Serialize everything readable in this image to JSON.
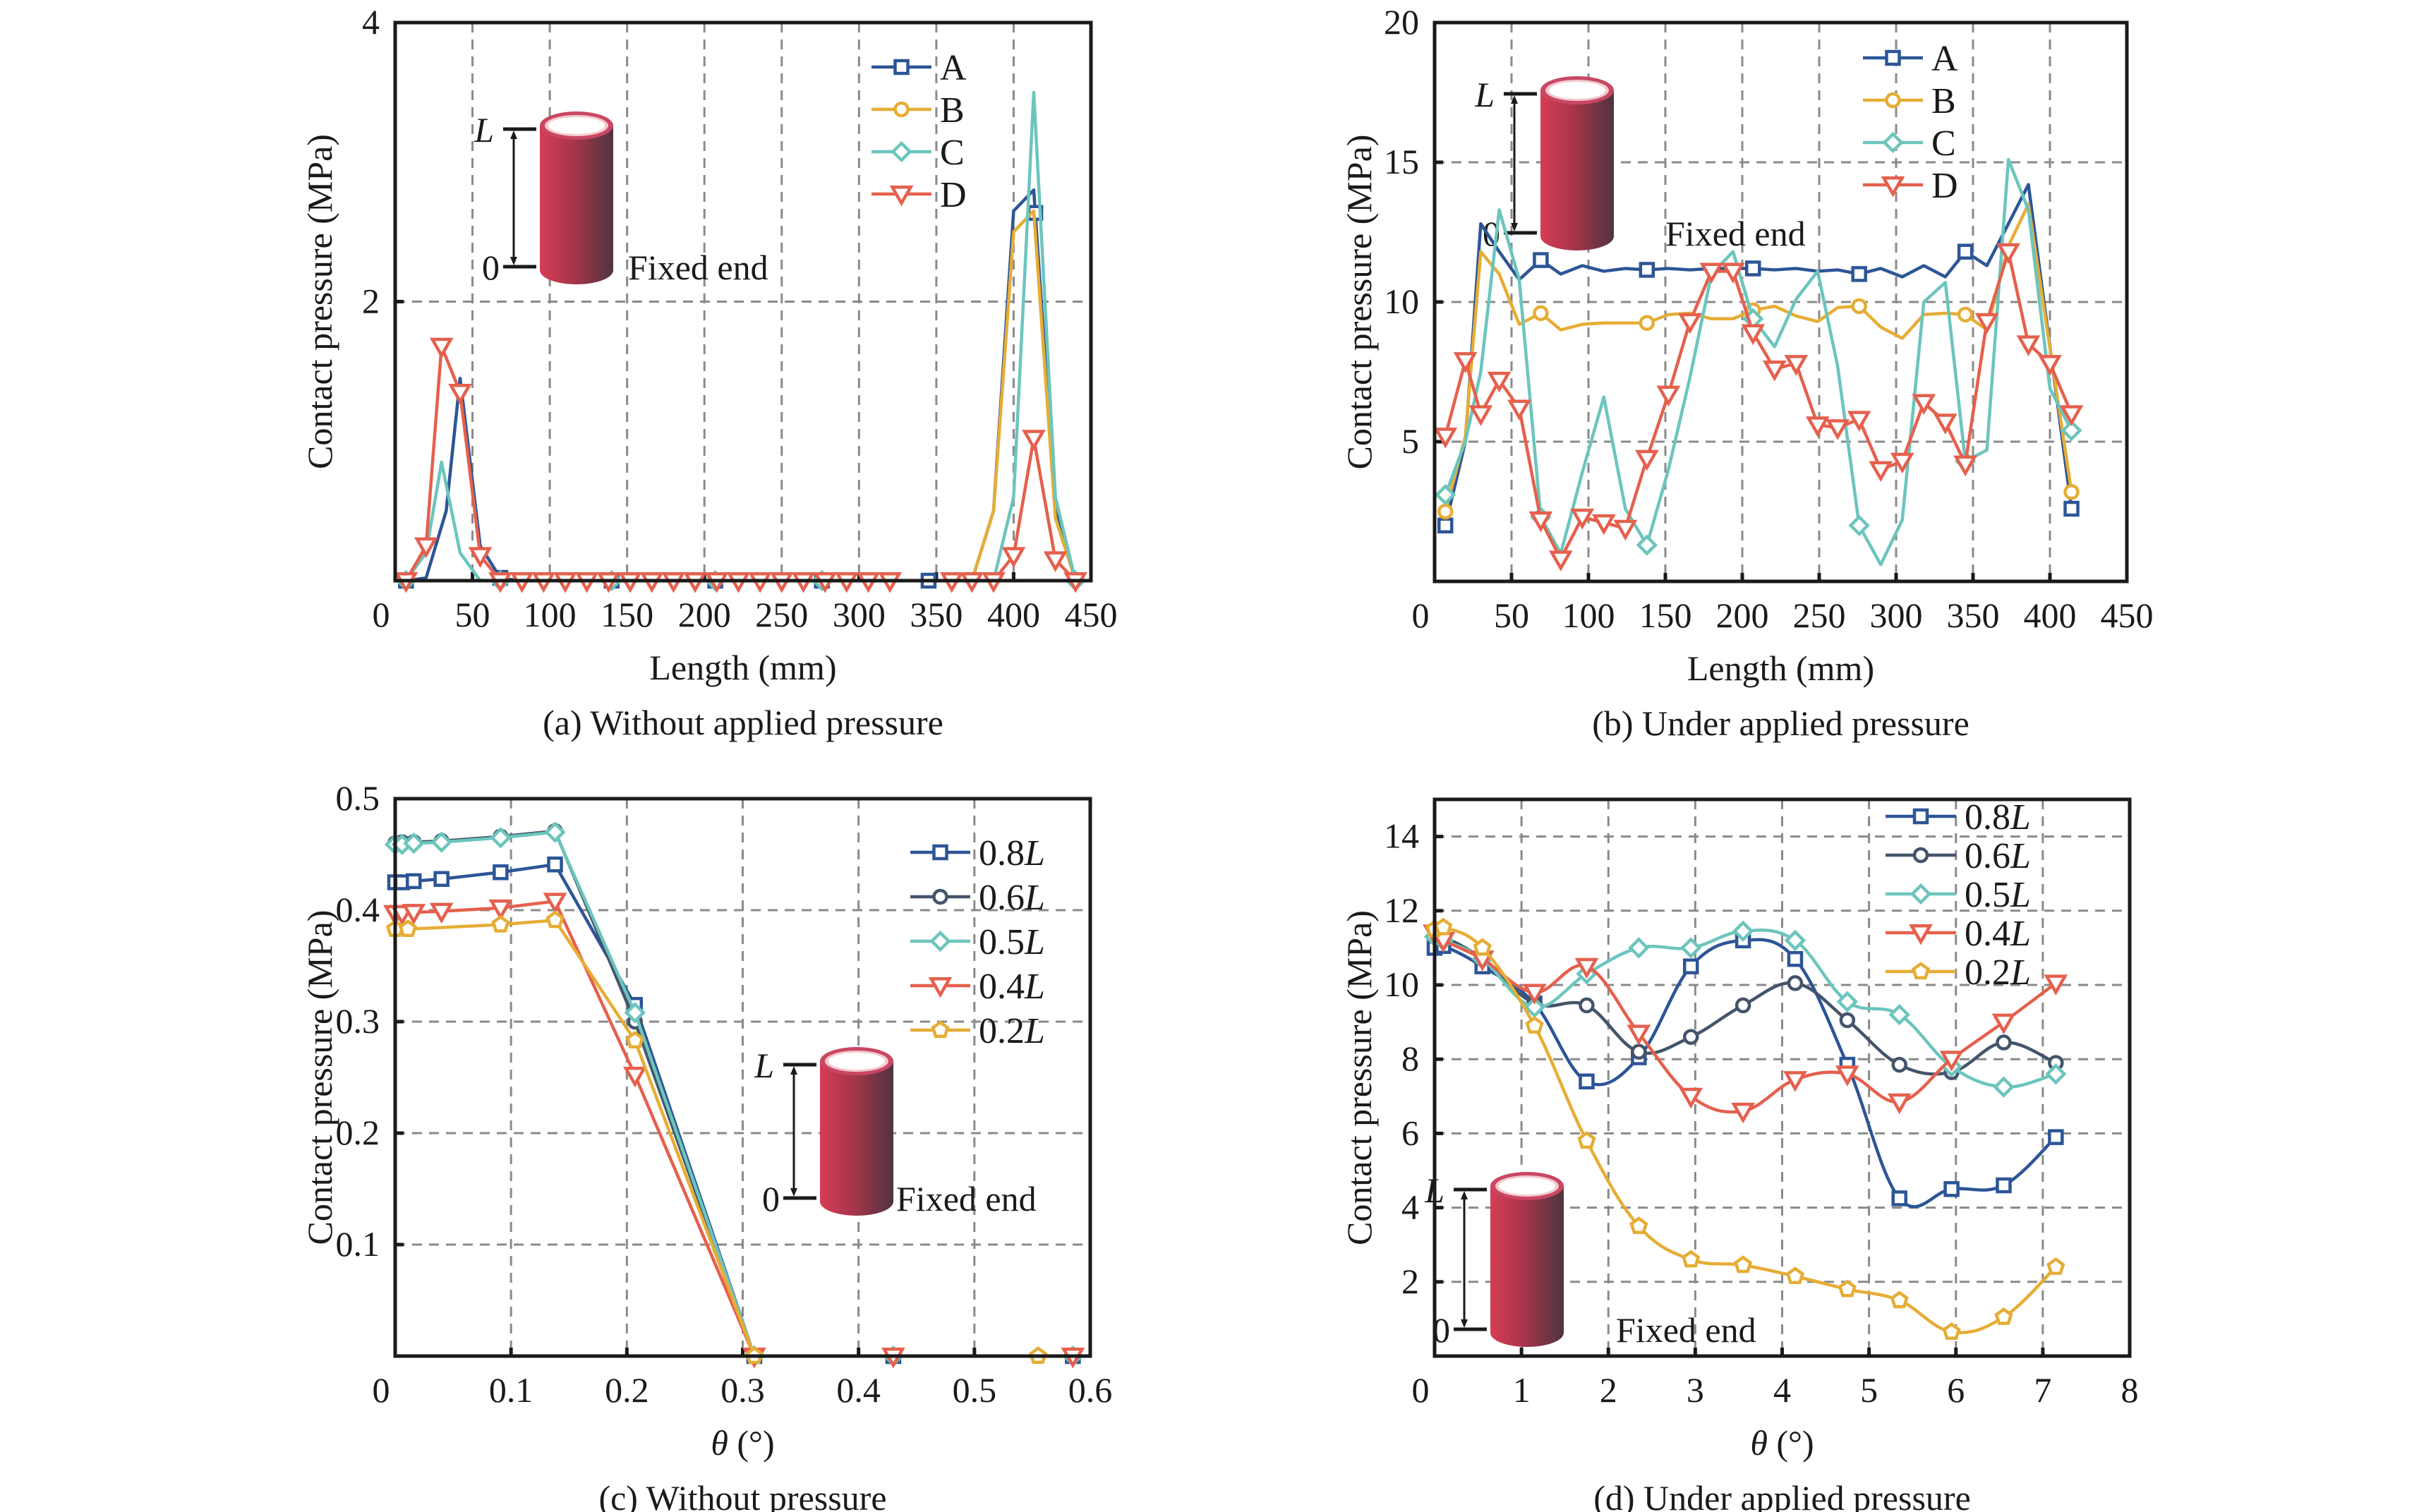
{
  "colors": {
    "A": "#2d5597",
    "B": "#e6ad35",
    "C": "#6cc5bd",
    "D": "#e5604d",
    "0.8L": "#2d5597",
    "0.6L": "#44546a",
    "0.5L": "#6cc5bd",
    "0.4L": "#e5604d",
    "0.2L": "#e6ad35"
  },
  "inset": {
    "top_label": "L",
    "bottom_label": "0",
    "fixed_label": "Fixed end"
  },
  "chart_data": [
    {
      "id": "a",
      "type": "line",
      "caption": "(a) Without applied pressure",
      "xlabel": "Length (mm)",
      "ylabel": "Contact pressure (MPa)",
      "xlim": [
        0,
        450
      ],
      "ylim": [
        0,
        4
      ],
      "xticks": [
        0,
        50,
        100,
        150,
        200,
        250,
        300,
        350,
        400,
        450
      ],
      "yticks": [
        2,
        4
      ],
      "ytick_labels_shown": [
        "2",
        "4"
      ],
      "grid": true,
      "smooth": false,
      "legend": "top-right",
      "series": [
        {
          "name": "A",
          "marker": "square",
          "x": [
            7,
            20,
            33,
            42,
            55,
            68,
            80,
            95,
            110,
            125,
            140,
            155,
            170,
            185,
            200,
            215,
            230,
            245,
            260,
            275,
            290,
            305,
            320,
            360,
            373,
            387,
            400,
            413,
            427,
            440
          ],
          "y": [
            0,
            0.02,
            0.5,
            1.45,
            0.25,
            0.02,
            0,
            0,
            0,
            0,
            0,
            0,
            0,
            0,
            0,
            0,
            0,
            0,
            0,
            0,
            0,
            0,
            0,
            0,
            0,
            0.5,
            2.65,
            2.8,
            0.5,
            0
          ],
          "markers_at": [
            7,
            68,
            140,
            207,
            276,
            345,
            414
          ]
        },
        {
          "name": "B",
          "marker": "circle",
          "x": [
            7,
            20,
            33,
            42,
            55,
            68,
            80,
            95,
            110,
            125,
            140,
            155,
            170,
            185,
            200,
            215,
            230,
            245,
            260,
            275,
            290,
            305,
            320,
            360,
            373,
            387,
            400,
            413,
            427,
            440
          ],
          "y": [
            0,
            0,
            0,
            0,
            0,
            0,
            0,
            0,
            0,
            0,
            0,
            0,
            0,
            0,
            0,
            0,
            0,
            0,
            0,
            0,
            0,
            0,
            0,
            0,
            0,
            0.5,
            2.5,
            2.65,
            0.45,
            0
          ],
          "markers_at": []
        },
        {
          "name": "C",
          "marker": "diamond",
          "x": [
            7,
            20,
            30,
            42,
            55,
            68,
            80,
            95,
            110,
            125,
            140,
            155,
            170,
            185,
            200,
            215,
            230,
            245,
            260,
            275,
            290,
            305,
            320,
            360,
            373,
            387,
            400,
            413,
            427,
            440
          ],
          "y": [
            0,
            0.2,
            0.85,
            0.2,
            0,
            0,
            0,
            0,
            0,
            0,
            0,
            0,
            0,
            0,
            0,
            0,
            0,
            0,
            0,
            0,
            0,
            0,
            0,
            0,
            0,
            0,
            0.6,
            3.5,
            0.6,
            0
          ],
          "markers_at": [
            7,
            68,
            140,
            207,
            276,
            440
          ]
        },
        {
          "name": "D",
          "marker": "triangle-down",
          "x": [
            7,
            20,
            30,
            42,
            55,
            68,
            82,
            96,
            110,
            124,
            138,
            152,
            166,
            180,
            194,
            208,
            222,
            236,
            250,
            264,
            278,
            292,
            306,
            320,
            360,
            373,
            387,
            400,
            413,
            427,
            440
          ],
          "y": [
            0,
            0.25,
            1.68,
            1.35,
            0.18,
            0,
            0,
            0,
            0,
            0,
            0,
            0,
            0,
            0,
            0,
            0,
            0,
            0,
            0,
            0,
            0,
            0,
            0,
            0,
            0,
            0,
            0,
            0.18,
            1.02,
            0.15,
            0
          ]
        }
      ]
    },
    {
      "id": "b",
      "type": "line",
      "caption": "(b) Under applied pressure",
      "xlabel": "Length (mm)",
      "ylabel": "Contact pressure (MPa)",
      "xlim": [
        0,
        450
      ],
      "ylim": [
        0,
        20
      ],
      "xticks": [
        0,
        50,
        100,
        150,
        200,
        250,
        300,
        350,
        400,
        450
      ],
      "yticks": [
        5,
        10,
        15,
        20
      ],
      "grid": true,
      "smooth": false,
      "legend": "top-right",
      "series": [
        {
          "name": "A",
          "marker": "square",
          "x": [
            7,
            20,
            30,
            42,
            55,
            69,
            82,
            96,
            110,
            124,
            138,
            152,
            166,
            180,
            194,
            207,
            221,
            235,
            249,
            262,
            276,
            290,
            304,
            318,
            332,
            345,
            359,
            373,
            386,
            414
          ],
          "y": [
            2.0,
            5.0,
            12.8,
            11.8,
            10.8,
            11.5,
            11.0,
            11.3,
            11.1,
            11.2,
            11.15,
            11.2,
            11.15,
            11.2,
            11.2,
            11.2,
            11.15,
            11.2,
            11.1,
            11.15,
            11.0,
            11.2,
            10.9,
            11.3,
            10.9,
            11.8,
            11.3,
            12.8,
            14.2,
            2.6
          ],
          "markers_at": [
            7,
            69,
            138,
            207,
            276,
            345,
            414
          ]
        },
        {
          "name": "B",
          "marker": "circle",
          "x": [
            7,
            20,
            30,
            42,
            55,
            69,
            82,
            96,
            110,
            124,
            138,
            152,
            166,
            180,
            194,
            207,
            221,
            235,
            249,
            262,
            276,
            290,
            304,
            318,
            332,
            345,
            359,
            373,
            386,
            414
          ],
          "y": [
            2.5,
            5.2,
            11.8,
            11.0,
            9.2,
            9.6,
            9.0,
            9.2,
            9.25,
            9.25,
            9.25,
            9.55,
            9.6,
            9.4,
            9.4,
            9.7,
            9.85,
            9.5,
            9.3,
            9.8,
            9.85,
            9.1,
            8.7,
            9.55,
            9.6,
            9.55,
            9.0,
            12.0,
            13.5,
            3.2
          ],
          "markers_at": [
            7,
            69,
            138,
            207,
            276,
            345,
            414
          ]
        },
        {
          "name": "C",
          "marker": "diamond",
          "x": [
            7,
            20,
            30,
            42,
            55,
            69,
            82,
            96,
            110,
            124,
            138,
            152,
            166,
            180,
            194,
            207,
            221,
            235,
            249,
            262,
            276,
            290,
            304,
            318,
            332,
            345,
            359,
            373,
            386,
            400,
            414
          ],
          "y": [
            3.1,
            5.0,
            7.5,
            13.3,
            10.8,
            2.3,
            1.0,
            3.9,
            6.6,
            2.6,
            1.3,
            4.0,
            7.3,
            11.0,
            11.8,
            9.4,
            8.4,
            10.1,
            11.1,
            7.7,
            2.0,
            0.6,
            2.2,
            10.0,
            10.7,
            4.3,
            4.7,
            15.1,
            13.3,
            6.9,
            5.4
          ],
          "markers_at": [
            7,
            69,
            138,
            207,
            276,
            345,
            414
          ]
        },
        {
          "name": "D",
          "marker": "triangle-down",
          "x": [
            7,
            20,
            30,
            42,
            55,
            69,
            82,
            96,
            110,
            124,
            138,
            152,
            166,
            180,
            194,
            207,
            221,
            235,
            249,
            262,
            276,
            290,
            304,
            318,
            332,
            345,
            359,
            373,
            386,
            400,
            414
          ],
          "y": [
            5.2,
            7.9,
            6.0,
            7.2,
            6.2,
            2.2,
            0.8,
            2.3,
            2.1,
            1.9,
            4.4,
            6.7,
            9.3,
            11.1,
            11.1,
            8.9,
            7.6,
            7.8,
            5.6,
            5.5,
            5.8,
            4.0,
            4.3,
            6.4,
            5.7,
            4.2,
            9.3,
            11.8,
            8.5,
            7.8,
            6.0
          ]
        }
      ]
    },
    {
      "id": "c",
      "type": "line",
      "caption": "(c) Without pressure",
      "xlabel": "θ (°)",
      "ylabel": "Contact pressure (MPa)",
      "xlim": [
        0,
        0.6
      ],
      "ylim": [
        0,
        0.5
      ],
      "xticks": [
        0,
        0.1,
        0.2,
        0.3,
        0.4,
        0.5,
        0.6
      ],
      "yticks": [
        0.1,
        0.2,
        0.3,
        0.4,
        0.5
      ],
      "grid": true,
      "smooth": false,
      "legend": "top-right",
      "series": [
        {
          "name": "0.8L",
          "marker": "square",
          "x": [
            0.0,
            0.006,
            0.016,
            0.04,
            0.091,
            0.138,
            0.207,
            0.31,
            0.43,
            0.585
          ],
          "y": [
            0.425,
            0.425,
            0.426,
            0.428,
            0.434,
            0.441,
            0.315,
            0,
            0,
            0
          ]
        },
        {
          "name": "0.6L",
          "marker": "circle",
          "x": [
            0.0,
            0.006,
            0.016,
            0.04,
            0.091,
            0.138,
            0.207,
            0.31,
            0.43,
            0.585
          ],
          "y": [
            0.46,
            0.461,
            0.461,
            0.462,
            0.466,
            0.471,
            0.3,
            0,
            0,
            0
          ]
        },
        {
          "name": "0.5L",
          "marker": "diamond",
          "x": [
            0.0,
            0.006,
            0.016,
            0.04,
            0.091,
            0.138,
            0.207,
            0.31,
            0.43,
            0.585
          ],
          "y": [
            0.459,
            0.459,
            0.46,
            0.461,
            0.465,
            0.47,
            0.308,
            0,
            0,
            0
          ]
        },
        {
          "name": "0.4L",
          "marker": "triangle-down",
          "x": [
            0.0,
            0.006,
            0.016,
            0.04,
            0.091,
            0.138,
            0.207,
            0.31,
            0.43,
            0.585
          ],
          "y": [
            0.397,
            0.397,
            0.398,
            0.399,
            0.402,
            0.408,
            0.252,
            0,
            0,
            0
          ]
        },
        {
          "name": "0.2L",
          "marker": "pentagon",
          "x": [
            0.0,
            0.011,
            0.091,
            0.138,
            0.207,
            0.31,
            0.555
          ],
          "y": [
            0.383,
            0.383,
            0.387,
            0.391,
            0.283,
            0,
            0
          ]
        }
      ]
    },
    {
      "id": "d",
      "type": "line",
      "caption": "(d) Under applied pressure",
      "xlabel": "θ (°)",
      "ylabel": "Contact pressure (MPa)",
      "xlim": [
        0,
        8
      ],
      "ylim": [
        0,
        15
      ],
      "xticks": [
        0,
        1,
        2,
        3,
        4,
        5,
        6,
        7,
        8
      ],
      "yticks": [
        2,
        4,
        6,
        8,
        10,
        12,
        14
      ],
      "grid": true,
      "smooth": true,
      "legend": "top-right",
      "series": [
        {
          "name": "0.8L",
          "marker": "square",
          "x": [
            0.0,
            0.1,
            0.55,
            1.15,
            1.75,
            2.35,
            2.95,
            3.55,
            4.15,
            4.75,
            5.35,
            5.95,
            6.55,
            7.15
          ],
          "y": [
            11.0,
            11.05,
            10.5,
            9.5,
            7.4,
            8.05,
            10.5,
            11.2,
            10.7,
            7.85,
            4.25,
            4.5,
            4.6,
            5.9
          ]
        },
        {
          "name": "0.6L",
          "marker": "circle",
          "x": [
            0.0,
            0.1,
            0.55,
            1.15,
            1.75,
            2.35,
            2.95,
            3.55,
            4.15,
            4.75,
            5.35,
            5.95,
            6.55,
            7.15
          ],
          "y": [
            11.3,
            11.3,
            10.7,
            9.5,
            9.45,
            8.2,
            8.6,
            9.45,
            10.05,
            9.05,
            7.85,
            7.65,
            8.45,
            7.9
          ]
        },
        {
          "name": "0.5L",
          "marker": "diamond",
          "x": [
            0.0,
            0.1,
            0.55,
            1.15,
            1.75,
            2.35,
            2.95,
            3.55,
            4.15,
            4.75,
            5.35,
            5.95,
            6.55,
            7.15
          ],
          "y": [
            11.3,
            11.2,
            10.7,
            9.4,
            10.3,
            11.0,
            11.0,
            11.45,
            11.2,
            9.55,
            9.2,
            7.8,
            7.25,
            7.6
          ]
        },
        {
          "name": "0.4L",
          "marker": "triangle-down",
          "x": [
            0.0,
            0.1,
            0.55,
            1.15,
            1.75,
            2.35,
            2.95,
            3.55,
            4.15,
            4.75,
            5.35,
            5.95,
            6.55,
            7.15
          ],
          "y": [
            11.4,
            11.2,
            10.7,
            9.8,
            10.5,
            8.7,
            7.0,
            6.6,
            7.45,
            7.6,
            6.85,
            8.0,
            9.0,
            10.05
          ]
        },
        {
          "name": "0.2L",
          "marker": "pentagon",
          "x": [
            0.0,
            0.1,
            0.55,
            1.15,
            1.75,
            2.35,
            2.95,
            3.55,
            4.15,
            4.75,
            5.35,
            5.95,
            6.55,
            7.15
          ],
          "y": [
            11.5,
            11.55,
            11.0,
            8.9,
            5.8,
            3.5,
            2.6,
            2.45,
            2.15,
            1.8,
            1.5,
            0.65,
            1.05,
            2.4
          ]
        }
      ]
    }
  ]
}
